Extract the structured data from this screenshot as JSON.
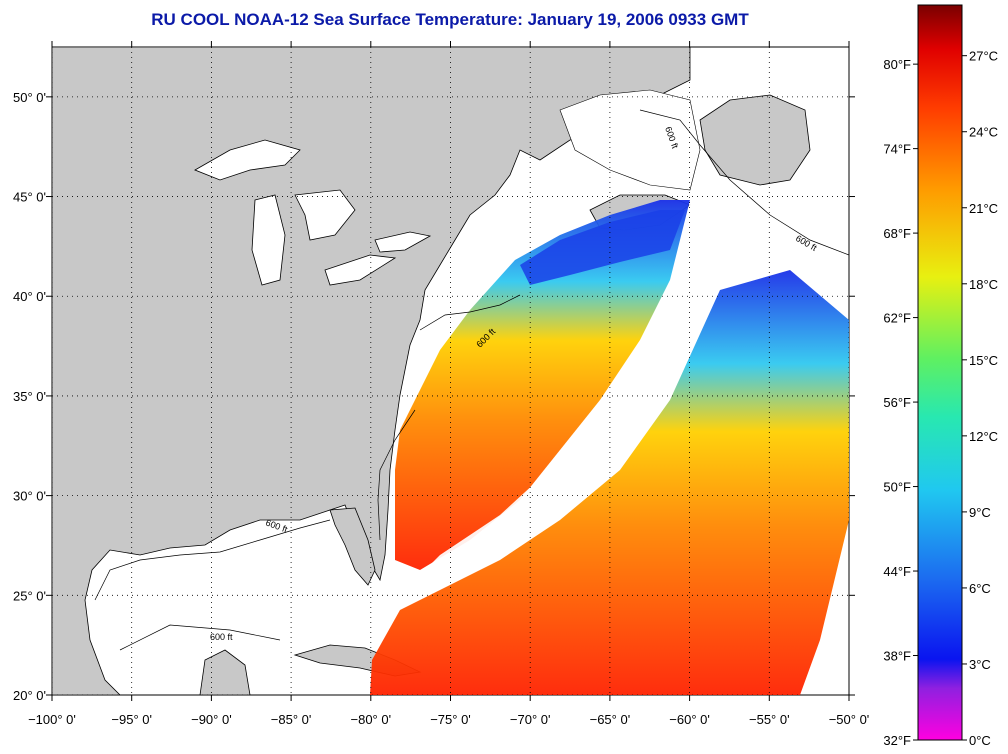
{
  "title": "RU COOL  NOAA-12  Sea Surface Temperature:  January 19, 2006 0933 GMT",
  "map": {
    "lon_range": [
      -100,
      -50
    ],
    "lat_range": [
      20,
      52.5
    ],
    "lat_ticks": [
      {
        "value": 50,
        "label": "50° 0'"
      },
      {
        "value": 45,
        "label": "45° 0'"
      },
      {
        "value": 40,
        "label": "40° 0'"
      },
      {
        "value": 35,
        "label": "35° 0'"
      },
      {
        "value": 30,
        "label": "30° 0'"
      },
      {
        "value": 25,
        "label": "25° 0'"
      },
      {
        "value": 20,
        "label": "20° 0'"
      }
    ],
    "lon_ticks": [
      {
        "value": -100,
        "label": "−100° 0'"
      },
      {
        "value": -95,
        "label": "−95° 0'"
      },
      {
        "value": -90,
        "label": "−90° 0'"
      },
      {
        "value": -85,
        "label": "−85° 0'"
      },
      {
        "value": -80,
        "label": "−80° 0'"
      },
      {
        "value": -75,
        "label": "−75° 0'"
      },
      {
        "value": -70,
        "label": "−70° 0'"
      },
      {
        "value": -65,
        "label": "−65° 0'"
      },
      {
        "value": -60,
        "label": "−60° 0'"
      },
      {
        "value": -55,
        "label": "−55° 0'"
      },
      {
        "value": -50,
        "label": "−50° 0'"
      }
    ],
    "isobath_label": "600 ft",
    "colors": {
      "land": "#c8c8c8",
      "ocean_nodata": "#ffffff",
      "grid": "#000000"
    }
  },
  "colorbar": {
    "range_c": [
      0,
      29
    ],
    "celsius_labels": [
      "27°C",
      "24°C",
      "21°C",
      "18°C",
      "15°C",
      "12°C",
      "9°C",
      "6°C",
      "3°C",
      "0°C"
    ],
    "fahrenheit_labels": [
      "80°F",
      "74°F",
      "68°F",
      "62°F",
      "56°F",
      "50°F",
      "44°F",
      "38°F",
      "32°F"
    ],
    "gradient": [
      "#ff00e0",
      "#9020e0",
      "#0a14f0",
      "#1c6cf0",
      "#20c8f0",
      "#28e8b0",
      "#60f060",
      "#e8f010",
      "#ff9a00",
      "#ff3c00",
      "#e00000",
      "#7a0000"
    ]
  }
}
